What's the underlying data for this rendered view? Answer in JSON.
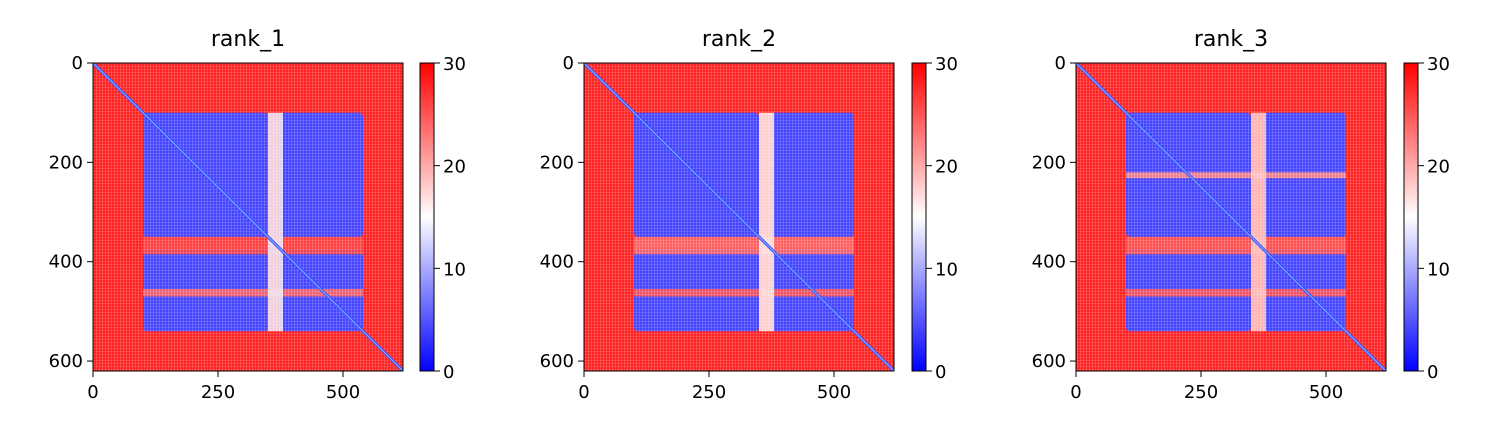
{
  "figure": {
    "background": "#ffffff"
  },
  "colors": {
    "low": "#0000ff",
    "mid": "#ffffff",
    "high": "#ff0000",
    "diagonal": "#3355ff",
    "axis": "#000000"
  },
  "chart_data": [
    {
      "type": "heatmap",
      "title": "rank_1",
      "xlabel": "",
      "ylabel": "",
      "xlim": [
        0,
        620
      ],
      "ylim": [
        620,
        0
      ],
      "xticks": [
        0,
        250,
        500
      ],
      "yticks": [
        0,
        200,
        400,
        600
      ],
      "colorbar": {
        "range": [
          0,
          30
        ],
        "ticks": [
          0,
          10,
          20,
          30
        ],
        "colormap": "bwr"
      },
      "domains": [
        [
          100,
          350
        ],
        [
          375,
          540
        ]
      ],
      "blocks": [
        {
          "rows": [
            100,
            350
          ],
          "cols": [
            100,
            350
          ],
          "value": 4
        },
        {
          "rows": [
            100,
            350
          ],
          "cols": [
            375,
            540
          ],
          "value": 4
        },
        {
          "rows": [
            375,
            540
          ],
          "cols": [
            100,
            350
          ],
          "value": 4
        },
        {
          "rows": [
            375,
            540
          ],
          "cols": [
            375,
            540
          ],
          "value": 4
        }
      ],
      "bands": [
        {
          "axis": "row",
          "range": [
            350,
            385
          ],
          "value": 26
        },
        {
          "axis": "row",
          "range": [
            455,
            470
          ],
          "value": 24
        },
        {
          "axis": "col",
          "range": [
            350,
            380
          ],
          "value": 14
        }
      ]
    },
    {
      "type": "heatmap",
      "title": "rank_2",
      "xlabel": "",
      "ylabel": "",
      "xlim": [
        0,
        620
      ],
      "ylim": [
        620,
        0
      ],
      "xticks": [
        0,
        250,
        500
      ],
      "yticks": [
        0,
        200,
        400,
        600
      ],
      "colorbar": {
        "range": [
          0,
          30
        ],
        "ticks": [
          0,
          10,
          20,
          30
        ],
        "colormap": "bwr"
      },
      "domains": [
        [
          100,
          350
        ],
        [
          375,
          540
        ]
      ],
      "blocks": [
        {
          "rows": [
            100,
            350
          ],
          "cols": [
            100,
            350
          ],
          "value": 4
        },
        {
          "rows": [
            100,
            350
          ],
          "cols": [
            375,
            540
          ],
          "value": 4
        },
        {
          "rows": [
            375,
            540
          ],
          "cols": [
            100,
            350
          ],
          "value": 4
        },
        {
          "rows": [
            375,
            540
          ],
          "cols": [
            375,
            540
          ],
          "value": 4
        }
      ],
      "bands": [
        {
          "axis": "row",
          "range": [
            350,
            385
          ],
          "value": 24
        },
        {
          "axis": "row",
          "range": [
            455,
            470
          ],
          "value": 25
        },
        {
          "axis": "col",
          "range": [
            350,
            380
          ],
          "value": 16
        }
      ]
    },
    {
      "type": "heatmap",
      "title": "rank_3",
      "xlabel": "",
      "ylabel": "",
      "xlim": [
        0,
        620
      ],
      "ylim": [
        620,
        0
      ],
      "xticks": [
        0,
        250,
        500
      ],
      "yticks": [
        0,
        200,
        400,
        600
      ],
      "colorbar": {
        "range": [
          0,
          30
        ],
        "ticks": [
          0,
          10,
          20,
          30
        ],
        "colormap": "bwr"
      },
      "domains": [
        [
          100,
          350
        ],
        [
          375,
          540
        ]
      ],
      "blocks": [
        {
          "rows": [
            100,
            350
          ],
          "cols": [
            100,
            350
          ],
          "value": 4
        },
        {
          "rows": [
            100,
            350
          ],
          "cols": [
            375,
            540
          ],
          "value": 4
        },
        {
          "rows": [
            375,
            540
          ],
          "cols": [
            100,
            350
          ],
          "value": 4
        },
        {
          "rows": [
            375,
            540
          ],
          "cols": [
            375,
            540
          ],
          "value": 4
        }
      ],
      "bands": [
        {
          "axis": "row",
          "range": [
            350,
            385
          ],
          "value": 25
        },
        {
          "axis": "row",
          "range": [
            455,
            470
          ],
          "value": 25
        },
        {
          "axis": "row",
          "range": [
            220,
            232
          ],
          "value": 22
        },
        {
          "axis": "col",
          "range": [
            350,
            380
          ],
          "value": 18
        }
      ]
    }
  ]
}
